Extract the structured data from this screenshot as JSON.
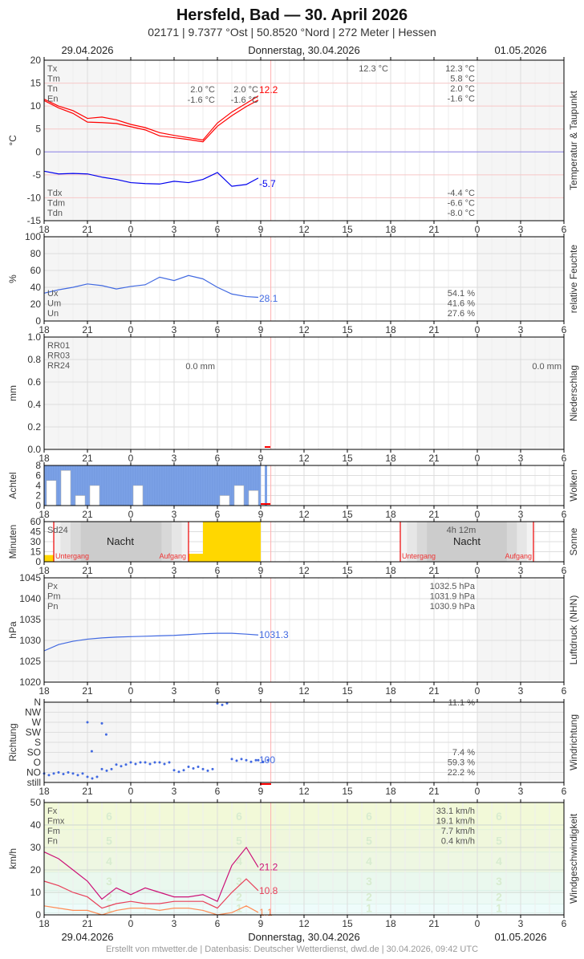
{
  "header": {
    "title": "Hersfeld, Bad  —  30. April 2026",
    "subtitle": "02171  |  9.7377 °Ost  |  50.8520 °Nord  |  272 Meter  |  Hessen",
    "date_left": "29.04.2026",
    "date_center": "Donnerstag, 30.04.2026",
    "date_right": "01.05.2026"
  },
  "footer": "Erstellt von mtwetter.de | Datenbasis: Deutscher Wetterdienst, dwd.de | 30.04.2026, 09:42 UTC",
  "hour_ticks": [
    "18",
    "21",
    "0",
    "3",
    "6",
    "9",
    "12",
    "15",
    "18",
    "21",
    "0",
    "3",
    "6"
  ],
  "colors": {
    "temp": "#ff0000",
    "dew": "#0000ee",
    "humidity": "#4169e1",
    "pressure": "#4169e1",
    "clouds": "#7ba1e6",
    "sun": "#ffd700",
    "fx": "#cc1177",
    "fm": "#e8405a",
    "fn": "#ff8c55",
    "now": "#ffb0b0"
  },
  "chart_data": [
    {
      "type": "line",
      "panel": "temp",
      "ylabel": "°C",
      "side_label": "Temperatur & Taupunkt",
      "ylim": [
        -15,
        20
      ],
      "yticks": [
        "20",
        "15",
        "10",
        "5",
        "0",
        "-5",
        "-10",
        "-15"
      ],
      "times": [
        "18:00",
        "19:00",
        "20:00",
        "21:00",
        "22:00",
        "23:00",
        "00:00",
        "01:00",
        "02:00",
        "03:00",
        "04:00",
        "05:00",
        "06:00",
        "07:00",
        "08:00",
        "08:50"
      ],
      "series": [
        {
          "name": "Tx",
          "values": [
            11.5,
            10,
            9,
            7.3,
            7.6,
            7,
            6,
            5.3,
            4.2,
            3.6,
            3.1,
            2.6,
            6.3,
            8.7,
            10.6,
            12.2
          ]
        },
        {
          "name": "Tn",
          "values": [
            11.2,
            9.6,
            8.4,
            6.5,
            6.4,
            6.2,
            5.5,
            4.8,
            3.5,
            3.1,
            2.7,
            2.2,
            5.6,
            7.9,
            9.9,
            11.3
          ]
        },
        {
          "name": "Tdm",
          "values": [
            -4.2,
            -4.8,
            -4.7,
            -4.8,
            -5.5,
            -6.0,
            -6.7,
            -6.9,
            -7.0,
            -6.4,
            -6.7,
            -6.0,
            -4.5,
            -7.5,
            -7.1,
            -5.7
          ]
        }
      ],
      "last_temp": "12.2",
      "last_dew": "-5.7",
      "legend": [
        "Tx",
        "Tm",
        "Tn",
        "En"
      ],
      "legend2": [
        "Tdx",
        "Tdm",
        "Tdn"
      ],
      "day1": {
        "tn": "2.0 °C",
        "en": "-1.6 °C",
        "tn2": "2.0 °C",
        "en2": "-1.6 °C"
      },
      "day2_tx": "12.3 °C",
      "summary": [
        "12.3 °C",
        "5.8 °C",
        "2.0 °C",
        "-1.6 °C"
      ],
      "summary2": [
        "-4.4 °C",
        "-6.6 °C",
        "-8.0 °C"
      ]
    },
    {
      "type": "line",
      "panel": "humidity",
      "ylabel": "%",
      "side_label": "relative Feuchte",
      "ylim": [
        0,
        100
      ],
      "yticks": [
        "100",
        "80",
        "60",
        "40",
        "20",
        "0"
      ],
      "values": [
        33,
        37,
        40,
        44,
        42,
        38,
        41,
        43,
        52,
        48,
        54,
        50,
        40,
        32,
        29,
        28.1
      ],
      "last": "28.1",
      "legend": [
        "Ux",
        "Um",
        "Un"
      ],
      "summary": [
        "54.1 %",
        "41.6 %",
        "27.6 %"
      ]
    },
    {
      "type": "bar",
      "panel": "precip",
      "ylabel": "mm",
      "side_label": "Niederschlag",
      "ylim": [
        0,
        1
      ],
      "yticks": [
        "1.0",
        "0.8",
        "0.6",
        "0.4",
        "0.2",
        "0.0"
      ],
      "legend": [
        "RR01",
        "RR03",
        "RR24"
      ],
      "day1": "0.0 mm",
      "day2": "0.0 mm"
    },
    {
      "type": "bar",
      "panel": "clouds",
      "ylabel": "Achtel",
      "side_label": "Wolken",
      "ylim": [
        0,
        8
      ],
      "yticks": [
        "8",
        "6",
        "4",
        "2",
        "0"
      ],
      "cover": [
        8,
        8,
        8,
        8,
        8,
        8,
        8,
        8,
        8,
        8,
        8,
        8,
        8,
        8,
        8
      ],
      "low": [
        5,
        7,
        2,
        4,
        0,
        0,
        4,
        0,
        0,
        0,
        0,
        0,
        2,
        4,
        3
      ]
    },
    {
      "type": "bar",
      "panel": "sun",
      "ylabel": "Minuten",
      "side_label": "Sonne",
      "ylim": [
        0,
        60
      ],
      "yticks": [
        "60",
        "45",
        "30",
        "15",
        "0"
      ],
      "sun_minutes": [
        10,
        0,
        0,
        0,
        0,
        0,
        0,
        0,
        0,
        0,
        12,
        60,
        60,
        60,
        60
      ],
      "sd24": "Sd24",
      "night": "Nacht",
      "sunset": "Untergang",
      "sunrise": "Aufgang",
      "night2_duration": "4h 12m"
    },
    {
      "type": "line",
      "panel": "pressure",
      "ylabel": "hPa",
      "side_label": "Luftdruck (NHN)",
      "ylim": [
        1020,
        1045
      ],
      "yticks": [
        "1045",
        "1040",
        "1035",
        "1030",
        "1025",
        "1020"
      ],
      "values": [
        1027.5,
        1029,
        1029.8,
        1030.3,
        1030.6,
        1030.8,
        1030.9,
        1031.0,
        1031.1,
        1031.2,
        1031.4,
        1031.6,
        1031.7,
        1031.7,
        1031.5,
        1031.3
      ],
      "last": "1031.3",
      "legend": [
        "Px",
        "Pm",
        "Pn"
      ],
      "summary": [
        "1032.5 hPa",
        "1031.9 hPa",
        "1030.9 hPa"
      ]
    },
    {
      "type": "scatter",
      "panel": "direction",
      "ylabel": "Richtung",
      "side_label": "Windrichtung",
      "yticks": [
        "N",
        "NW",
        "W",
        "SW",
        "S",
        "SO",
        "O",
        "NO",
        "still"
      ],
      "values_deg": [
        40,
        45,
        40,
        25,
        60,
        80,
        90,
        90,
        90,
        55,
        70,
        60,
        355,
        105,
        100,
        100
      ],
      "last": "100",
      "summary": [
        "11.1 %",
        "7.4 %",
        "59.3 %",
        "22.2 %"
      ]
    },
    {
      "type": "line",
      "panel": "wind",
      "ylabel": "km/h",
      "side_label": "Windgeschwindigkeit",
      "ylim": [
        0,
        50
      ],
      "yticks": [
        "50",
        "40",
        "30",
        "20",
        "10",
        "0"
      ],
      "series": [
        {
          "name": "Fx",
          "values": [
            28,
            25,
            20,
            15,
            7,
            12,
            9,
            12,
            10,
            8,
            8,
            9,
            6,
            22,
            30,
            21.2
          ]
        },
        {
          "name": "Fm",
          "values": [
            15,
            13,
            10,
            8,
            3,
            5,
            6,
            5,
            5,
            6,
            6,
            6,
            3,
            10,
            16,
            10.8
          ]
        },
        {
          "name": "Fn",
          "values": [
            4,
            3,
            2,
            2,
            0,
            2,
            3,
            3,
            2,
            3,
            3,
            2,
            0,
            1,
            4,
            1.1
          ]
        }
      ],
      "legend": [
        "Fx",
        "Fmx",
        "Fm",
        "Fn"
      ],
      "last": [
        "21.2",
        "10.8",
        "1.1"
      ],
      "summary": [
        "33.1 km/h",
        "19.1 km/h",
        "7.7 km/h",
        "0.4 km/h"
      ],
      "beaufort": [
        "1",
        "2",
        "3",
        "4",
        "5",
        "6"
      ]
    }
  ]
}
